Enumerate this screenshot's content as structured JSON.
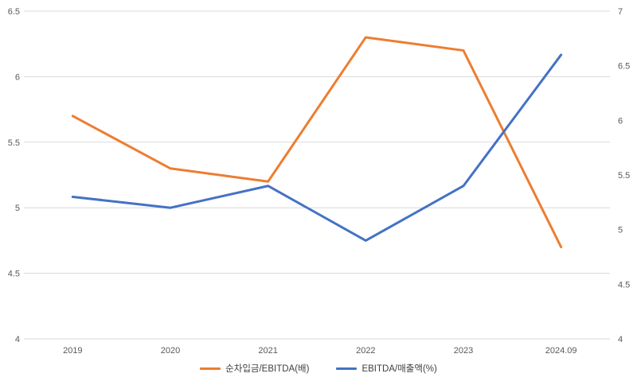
{
  "chart_data": {
    "type": "line",
    "title": "",
    "categories": [
      "2019",
      "2020",
      "2021",
      "2022",
      "2023",
      "2024.09"
    ],
    "series": [
      {
        "name": "순차입금/EBITDA(배)",
        "color": "#ED7D31",
        "axis": "left",
        "values": [
          5.7,
          5.3,
          5.2,
          6.3,
          6.2,
          4.7
        ]
      },
      {
        "name": "EBITDA/매출액(%)",
        "color": "#4472C4",
        "axis": "right",
        "values": [
          5.3,
          5.2,
          5.4,
          4.9,
          5.4,
          6.6
        ]
      }
    ],
    "left_axis": {
      "min": 4,
      "max": 6.5,
      "tick_labels": [
        "4",
        "4.5",
        "5",
        "5.5",
        "6",
        "6.5"
      ]
    },
    "right_axis": {
      "min": 4,
      "max": 7,
      "tick_labels": [
        "4",
        "4.5",
        "5",
        "5.5",
        "6",
        "6.5",
        "7"
      ]
    },
    "grid": true,
    "legend_position": "bottom"
  },
  "styles": {
    "background": "#FFFFFF",
    "gridline_color": "#D9D9D9",
    "tick_text_color": "#595959",
    "legend_text_color": "#404040",
    "line_width": 3
  }
}
